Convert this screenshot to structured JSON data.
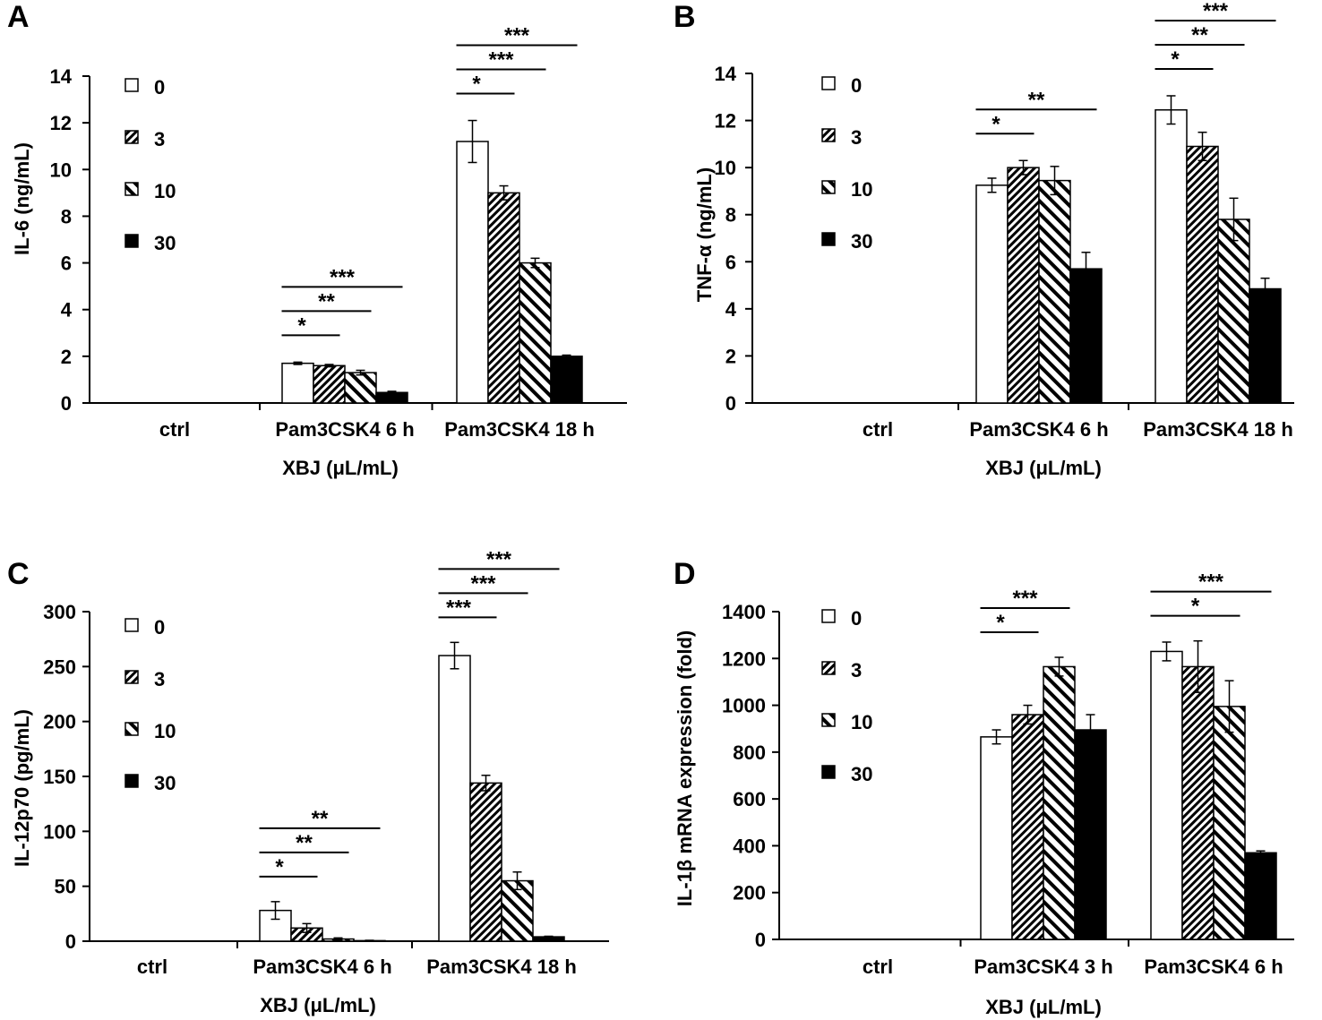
{
  "colors": {
    "ink": "#000000",
    "paper": "#ffffff"
  },
  "legend_title": "XBJ (μL/mL)",
  "legend_items": [
    {
      "label": "0",
      "pattern": "white"
    },
    {
      "label": "3",
      "pattern": "dense"
    },
    {
      "label": "10",
      "pattern": "wide"
    },
    {
      "label": "30",
      "pattern": "black"
    }
  ],
  "chart_data": [
    {
      "panel": "A",
      "type": "bar",
      "ylabel": "IL-6 (ng/mL)",
      "xlabel": "XBJ (μL/mL)",
      "ylim": [
        0,
        14
      ],
      "yticks": [
        0,
        2,
        4,
        6,
        8,
        10,
        12,
        14
      ],
      "categories": [
        "ctrl",
        "Pam3CSK4 6 h",
        "Pam3CSK4 18 h"
      ],
      "series": [
        {
          "name": "0",
          "values": [
            0,
            1.7,
            11.2
          ],
          "errors": [
            0,
            0.05,
            0.9
          ]
        },
        {
          "name": "3",
          "values": [
            0,
            1.6,
            9.0
          ],
          "errors": [
            0,
            0.05,
            0.3
          ]
        },
        {
          "name": "10",
          "values": [
            0,
            1.3,
            6.0
          ],
          "errors": [
            0,
            0.1,
            0.2
          ]
        },
        {
          "name": "30",
          "values": [
            0,
            0.45,
            2.0
          ],
          "errors": [
            0,
            0.05,
            0.05
          ]
        }
      ],
      "significance": [
        {
          "category": 1,
          "from": 0,
          "to": 1,
          "label": "*"
        },
        {
          "category": 1,
          "from": 0,
          "to": 2,
          "label": "**"
        },
        {
          "category": 1,
          "from": 0,
          "to": 3,
          "label": "***"
        },
        {
          "category": 2,
          "from": 0,
          "to": 1,
          "label": "*"
        },
        {
          "category": 2,
          "from": 0,
          "to": 2,
          "label": "***"
        },
        {
          "category": 2,
          "from": 0,
          "to": 3,
          "label": "***"
        }
      ]
    },
    {
      "panel": "B",
      "type": "bar",
      "ylabel": "TNF-α (ng/mL)",
      "xlabel": "XBJ (μL/mL)",
      "ylim": [
        0,
        14
      ],
      "yticks": [
        0,
        2,
        4,
        6,
        8,
        10,
        12,
        14
      ],
      "categories": [
        "ctrl",
        "Pam3CSK4 6 h",
        "Pam3CSK4 18 h"
      ],
      "series": [
        {
          "name": "0",
          "values": [
            0,
            9.25,
            12.45
          ],
          "errors": [
            0,
            0.3,
            0.6
          ]
        },
        {
          "name": "3",
          "values": [
            0,
            10.0,
            10.9
          ],
          "errors": [
            0,
            0.3,
            0.6
          ]
        },
        {
          "name": "10",
          "values": [
            0,
            9.45,
            7.8
          ],
          "errors": [
            0,
            0.6,
            0.9
          ]
        },
        {
          "name": "30",
          "values": [
            0,
            5.7,
            4.85
          ],
          "errors": [
            0,
            0.7,
            0.45
          ]
        }
      ],
      "significance": [
        {
          "category": 1,
          "from": 0,
          "to": 1,
          "label": "*"
        },
        {
          "category": 1,
          "from": 0,
          "to": 3,
          "label": "**"
        },
        {
          "category": 2,
          "from": 0,
          "to": 1,
          "label": "*"
        },
        {
          "category": 2,
          "from": 0,
          "to": 2,
          "label": "**"
        },
        {
          "category": 2,
          "from": 0,
          "to": 3,
          "label": "***"
        }
      ]
    },
    {
      "panel": "C",
      "type": "bar",
      "ylabel": "IL-12p70 (pg/mL)",
      "xlabel": "XBJ (μL/mL)",
      "ylim": [
        0,
        300
      ],
      "yticks": [
        0,
        50,
        100,
        150,
        200,
        250,
        300
      ],
      "categories": [
        "ctrl",
        "Pam3CSK4 6 h",
        "Pam3CSK4 18 h"
      ],
      "series": [
        {
          "name": "0",
          "values": [
            0,
            28,
            260
          ],
          "errors": [
            0,
            8,
            12
          ]
        },
        {
          "name": "3",
          "values": [
            0,
            12,
            144
          ],
          "errors": [
            0,
            4,
            7
          ]
        },
        {
          "name": "10",
          "values": [
            0,
            2,
            55
          ],
          "errors": [
            0,
            1,
            8
          ]
        },
        {
          "name": "30",
          "values": [
            0,
            0.5,
            4
          ],
          "errors": [
            0,
            0.3,
            0.5
          ]
        }
      ],
      "significance": [
        {
          "category": 1,
          "from": 0,
          "to": 1,
          "label": "*"
        },
        {
          "category": 1,
          "from": 0,
          "to": 2,
          "label": "**"
        },
        {
          "category": 1,
          "from": 0,
          "to": 3,
          "label": "**"
        },
        {
          "category": 2,
          "from": 0,
          "to": 1,
          "label": "***"
        },
        {
          "category": 2,
          "from": 0,
          "to": 2,
          "label": "***"
        },
        {
          "category": 2,
          "from": 0,
          "to": 3,
          "label": "***"
        }
      ]
    },
    {
      "panel": "D",
      "type": "bar",
      "ylabel": "IL-1β mRNA expression (fold)",
      "xlabel": "XBJ (μL/mL)",
      "ylim": [
        0,
        1400
      ],
      "yticks": [
        0,
        200,
        400,
        600,
        800,
        1000,
        1200,
        1400
      ],
      "categories": [
        "ctrl",
        "Pam3CSK4 3 h",
        "Pam3CSK4 6 h"
      ],
      "series": [
        {
          "name": "0",
          "values": [
            1,
            865,
            1230
          ],
          "errors": [
            0,
            30,
            40
          ]
        },
        {
          "name": "3",
          "values": [
            1,
            960,
            1165
          ],
          "errors": [
            0,
            40,
            110
          ]
        },
        {
          "name": "10",
          "values": [
            1,
            1165,
            995
          ],
          "errors": [
            0,
            40,
            110
          ]
        },
        {
          "name": "30",
          "values": [
            1,
            895,
            370
          ],
          "errors": [
            0,
            65,
            8
          ]
        }
      ],
      "significance": [
        {
          "category": 1,
          "from": 0,
          "to": 1,
          "label": "*"
        },
        {
          "category": 1,
          "from": 0,
          "to": 2,
          "label": "***"
        },
        {
          "category": 2,
          "from": 0,
          "to": 2,
          "label": "*"
        },
        {
          "category": 2,
          "from": 0,
          "to": 3,
          "label": "***"
        }
      ]
    }
  ]
}
